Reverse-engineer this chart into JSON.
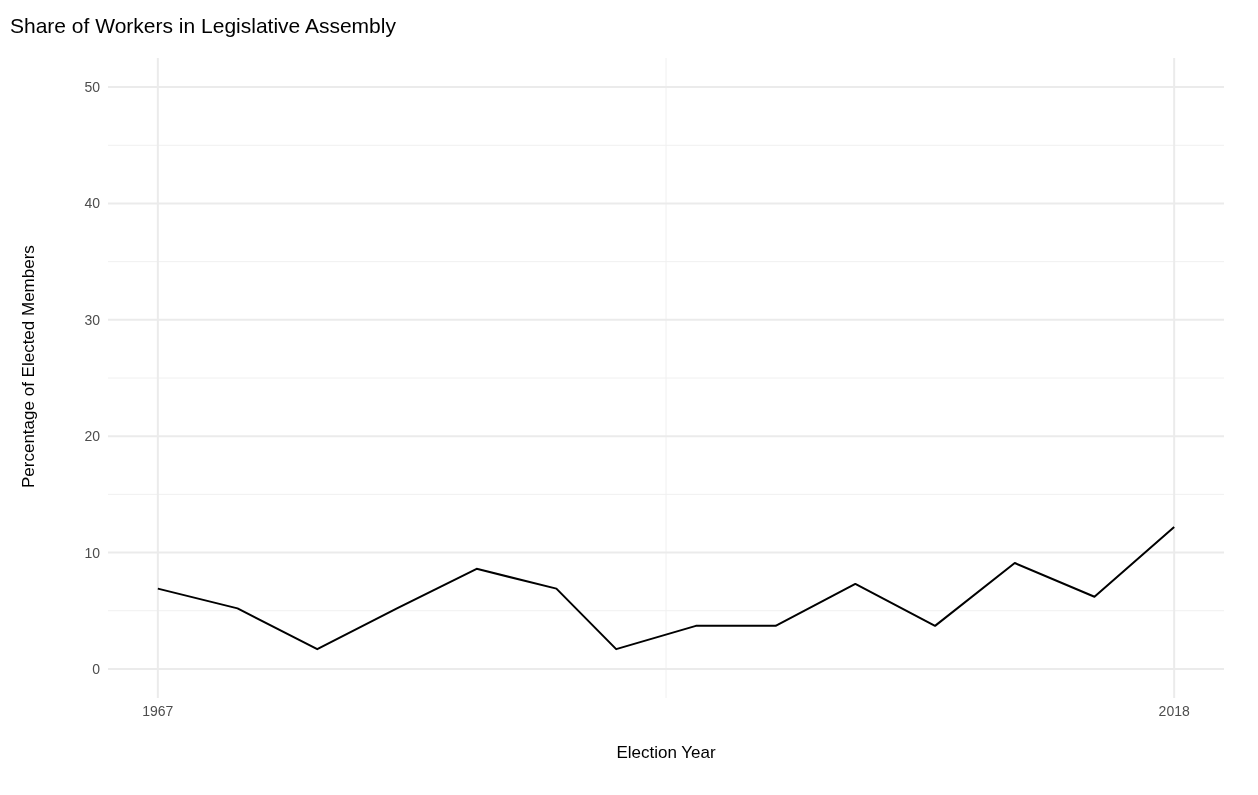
{
  "chart_data": {
    "type": "line",
    "title": "Share of Workers in Legislative Assembly",
    "xlabel": "Election Year",
    "ylabel": "Percentage of Elected Members",
    "x": [
      1967,
      1971,
      1975,
      1979,
      1983,
      1987,
      1990,
      1994,
      1998,
      2002,
      2006,
      2010,
      2014,
      2018
    ],
    "series": [
      {
        "color": "#000000",
        "values": [
          6.9,
          5.2,
          1.7,
          5.2,
          8.6,
          6.9,
          1.7,
          3.7,
          3.7,
          7.3,
          3.7,
          9.1,
          6.2,
          12.2
        ]
      }
    ],
    "xlim": [
      1964.5,
      2020.5
    ],
    "xticks": [
      1967,
      2018
    ],
    "ylim": [
      -2.5,
      52.5
    ],
    "yticks": [
      0,
      10,
      20,
      30,
      40,
      50
    ],
    "grid": true,
    "marker": "none",
    "line_style": "solid"
  }
}
